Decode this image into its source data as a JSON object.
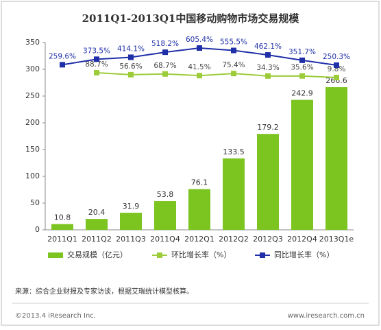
{
  "chart_data": {
    "type": "bar-line",
    "title": "2011Q1-2013Q1中国移动购物市场交易规模",
    "categories": [
      "2011Q1",
      "2011Q2",
      "2011Q3",
      "2011Q4",
      "2012Q1",
      "2012Q2",
      "2012Q3",
      "2012Q4",
      "2013Q1e"
    ],
    "series": [
      {
        "name": "交易规模（亿元）",
        "color": "#7cc520",
        "kind": "bar",
        "values": [
          10.8,
          20.4,
          31.9,
          53.8,
          76.1,
          133.5,
          179.2,
          242.9,
          266.6
        ]
      },
      {
        "name": "环比增长率（%）",
        "color": "#9ccc3a",
        "kind": "line",
        "values": [
          null,
          88.7,
          56.6,
          68.7,
          41.5,
          75.4,
          34.3,
          35.6,
          9.8
        ],
        "value_labels": [
          null,
          "88.7%",
          "56.6%",
          "68.7%",
          "41.5%",
          "75.4%",
          "34.3%",
          "35.6%",
          "9.8%"
        ]
      },
      {
        "name": "同比增长率（%）",
        "color": "#1f2fa8",
        "kind": "line",
        "values": [
          259.6,
          373.5,
          414.1,
          518.2,
          605.4,
          555.5,
          462.1,
          351.7,
          250.3
        ],
        "value_labels": [
          "259.6%",
          "373.5%",
          "414.1%",
          "518.2%",
          "605.4%",
          "555.5%",
          "462.1%",
          "351.7%",
          "250.3%"
        ]
      }
    ],
    "ylim": [
      0,
      350
    ],
    "yticks": [
      0,
      50,
      100,
      150,
      200,
      250,
      300,
      350
    ],
    "grid": false,
    "source": "来源：综合企业财报及专家访谈，根据艾瑞统计模型核算。",
    "copyright": "©2013.4 iResearch Inc.",
    "website": "www.iresearch.com.cn"
  }
}
